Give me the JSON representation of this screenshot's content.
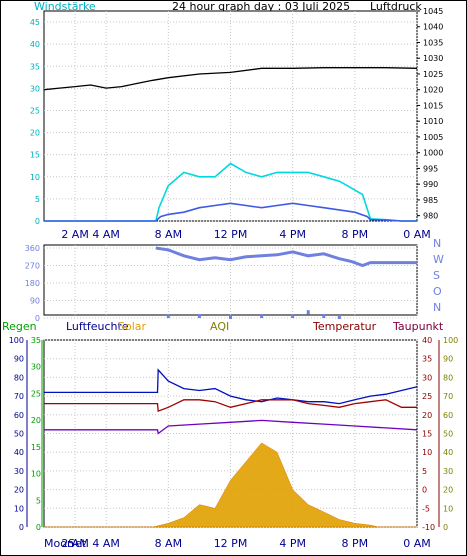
{
  "chart_data": [
    {
      "type": "line",
      "title": "24 hour graph day : 03 Juli 2025",
      "left_axis_title": "Windstärke",
      "right_axis_title": "Luftdruck",
      "left_ticks": [
        "0",
        "5",
        "10",
        "15",
        "20",
        "25",
        "30",
        "35",
        "40",
        "45"
      ],
      "right_ticks": [
        "980",
        "985",
        "990",
        "995",
        "1000",
        "1005",
        "1010",
        "1015",
        "1020",
        "1025",
        "1030",
        "1035",
        "1040",
        "1045"
      ],
      "left_range": [
        0,
        47.5
      ],
      "right_range": [
        978.3,
        1045
      ],
      "x_ticks": [
        "2 AM",
        "4 AM",
        "8 AM",
        "12 PM",
        "4 PM",
        "8 PM",
        "0 AM"
      ],
      "x_tick_hours": [
        2,
        4,
        8,
        12,
        16,
        20,
        24
      ],
      "colors": {
        "pressure": "#000000",
        "gust": "#00d8e0",
        "wind": "#3c5ae6",
        "left_axis": "#00b0c0"
      },
      "series": [
        {
          "key": "pressure",
          "axis": "right",
          "x": [
            0,
            1,
            2,
            3,
            4,
            5,
            6,
            7,
            8,
            10,
            12,
            14,
            16,
            18,
            20,
            22,
            24
          ],
          "y": [
            1020,
            1020.5,
            1021,
            1021.5,
            1020.5,
            1021,
            1022,
            1023,
            1023.8,
            1025,
            1025.5,
            1026.8,
            1026.8,
            1027,
            1027,
            1027,
            1026.8
          ]
        },
        {
          "key": "gust",
          "axis": "left",
          "x": [
            0,
            7.2,
            7.4,
            8,
            9,
            10,
            11,
            12,
            13,
            14,
            15,
            16,
            17,
            18,
            19,
            19.5,
            20,
            20.5,
            21,
            22,
            23,
            24
          ],
          "y": [
            0,
            0,
            3,
            8,
            11,
            10,
            10,
            13,
            11,
            10,
            11,
            11,
            11,
            10,
            9,
            8,
            7,
            6,
            0.5,
            0.3,
            0,
            0
          ]
        },
        {
          "key": "wind",
          "axis": "left",
          "x": [
            0,
            7.2,
            7.5,
            8,
            9,
            10,
            11,
            12,
            13,
            14,
            15,
            16,
            17,
            18,
            19,
            20,
            20.8,
            21,
            22,
            23,
            24
          ],
          "y": [
            0,
            0,
            1,
            1.5,
            2,
            3,
            3.5,
            4,
            3.5,
            3,
            3.5,
            4,
            3.5,
            3,
            2.5,
            2,
            1,
            0.3,
            0.2,
            0,
            0
          ]
        }
      ]
    },
    {
      "type": "scatter",
      "right_axis_title_letters": [
        "N",
        "W",
        "S",
        "O",
        "N"
      ],
      "left_ticks": [
        "0",
        "90",
        "180",
        "270",
        "360"
      ],
      "x_tick_hours": [
        2,
        4,
        8,
        12,
        16,
        20,
        24
      ],
      "colors": {
        "direction": "#7080e0"
      },
      "series": [
        {
          "key": "direction",
          "x": [
            7.2,
            8,
            9,
            10,
            11,
            12,
            13,
            14,
            15,
            16,
            17,
            18,
            19,
            19.8,
            20.5,
            21,
            24
          ],
          "y": [
            360,
            350,
            320,
            300,
            310,
            300,
            315,
            320,
            325,
            340,
            320,
            330,
            305,
            290,
            270,
            285,
            285
          ]
        }
      ],
      "bottom_points": {
        "x": [
          8,
          10,
          12,
          14,
          16,
          17,
          18,
          19
        ],
        "y": [
          10,
          10,
          5,
          10,
          10,
          30,
          10,
          5
        ]
      }
    },
    {
      "type": "area",
      "labels": {
        "rain": "Regen",
        "humidity": "Luftfeuchte",
        "solar": "Solar",
        "aqi": "AQI",
        "temperature": "Temperatur",
        "dewpoint": "Taupunkt"
      },
      "colors": {
        "rain": "#00a000",
        "humidity": "#000090",
        "solar": "#e0a000",
        "aqi": "#808000",
        "temperature": "#8b0000",
        "dewpoint": "#800040",
        "humidity_line": "#0010c0",
        "temp_line": "#a00000",
        "dew_line": "#7000c0"
      },
      "humidity_ticks": [
        "0",
        "10",
        "20",
        "30",
        "40",
        "50",
        "60",
        "70",
        "80",
        "90",
        "100"
      ],
      "rain_ticks": [
        "0",
        "5",
        "10",
        "15",
        "20",
        "25",
        "30",
        "35"
      ],
      "temp_ticks": [
        "-10",
        "-5",
        "0",
        "5",
        "10",
        "15",
        "20",
        "25",
        "30",
        "35",
        "40"
      ],
      "dew_ticks": [
        "0",
        "10",
        "20",
        "30",
        "40",
        "50",
        "60",
        "70",
        "80",
        "90",
        "100"
      ],
      "x_ticks": [
        "2 AM",
        "4 AM",
        "8 AM",
        "12 PM",
        "4 PM",
        "8 PM",
        "0 AM"
      ],
      "x_tick_hours": [
        2,
        4,
        8,
        12,
        16,
        20,
        24
      ],
      "moon_labels": [
        "Moon",
        "Set",
        "2 AM"
      ],
      "series": [
        {
          "key": "humidity",
          "axis": "humidity",
          "x": [
            0,
            7.3,
            7.35,
            8,
            9,
            10,
            11,
            12,
            13,
            14,
            15,
            16,
            17,
            18,
            19,
            20,
            21,
            22,
            23,
            24
          ],
          "y": [
            72,
            72,
            84,
            78,
            74,
            73,
            74,
            70,
            68,
            67,
            69,
            68,
            67,
            67,
            66,
            68,
            70,
            71,
            73,
            75
          ]
        },
        {
          "key": "temperature",
          "axis": "temp",
          "x": [
            0,
            7.3,
            7.35,
            8,
            9,
            10,
            11,
            12,
            13,
            14,
            15,
            16,
            17,
            18,
            19,
            20,
            21,
            22,
            23,
            24
          ],
          "y": [
            23,
            23,
            21,
            22,
            24,
            24,
            23.5,
            22,
            23,
            24,
            24,
            24,
            23,
            22.5,
            22,
            23,
            23.5,
            24,
            22,
            22
          ]
        },
        {
          "key": "dewpoint",
          "axis": "temp",
          "x": [
            0,
            7.3,
            7.35,
            8,
            10,
            12,
            14,
            16,
            18,
            20,
            22,
            24
          ],
          "y": [
            16,
            16,
            15,
            17,
            17.5,
            18,
            18.5,
            18,
            17.5,
            17,
            16.5,
            16
          ]
        },
        {
          "key": "solar",
          "axis": "humidity",
          "x": [
            0,
            7,
            8,
            9,
            10,
            11,
            12,
            13,
            14,
            15,
            16,
            17,
            18,
            19,
            20,
            21,
            21.5,
            24
          ],
          "y": [
            0,
            0,
            2,
            5,
            12,
            10,
            25,
            35,
            45,
            40,
            20,
            12,
            8,
            4,
            2,
            1,
            0,
            0
          ]
        }
      ]
    }
  ]
}
